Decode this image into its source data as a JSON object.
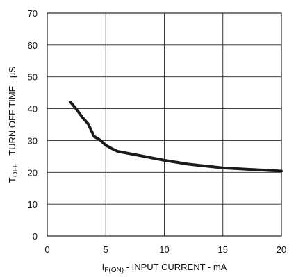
{
  "chart_data": {
    "type": "line",
    "title": "",
    "xlabel": {
      "main": "I",
      "sub": "F(ON)",
      "rest": " - INPUT CURRENT - mA"
    },
    "ylabel": {
      "main": "T",
      "sub": "OFF",
      "rest": " - TURN OFF TIME - µS"
    },
    "xlim": [
      0,
      20
    ],
    "ylim": [
      0,
      70
    ],
    "xticks": [
      "0",
      "5",
      "10",
      "15",
      "20"
    ],
    "yticks": [
      "0",
      "10",
      "20",
      "30",
      "40",
      "50",
      "60",
      "70"
    ],
    "xtick_values": [
      0,
      5,
      10,
      15,
      20
    ],
    "ytick_values": [
      0,
      10,
      20,
      30,
      40,
      50,
      60,
      70
    ],
    "grid": true,
    "series": [
      {
        "color": "#1a1a1a",
        "x": [
          2,
          2.5,
          3,
          3.5,
          4,
          4.5,
          5,
          5.5,
          6,
          7,
          8,
          9,
          10,
          11,
          12,
          13,
          14,
          15,
          16,
          17,
          18,
          19,
          20
        ],
        "y": [
          42,
          39.8,
          37.3,
          35.2,
          31.3,
          30.2,
          28.5,
          27.5,
          26.6,
          25.9,
          25.2,
          24.5,
          23.8,
          23.2,
          22.6,
          22.2,
          21.8,
          21.4,
          21.2,
          21.0,
          20.8,
          20.6,
          20.4
        ]
      }
    ]
  }
}
